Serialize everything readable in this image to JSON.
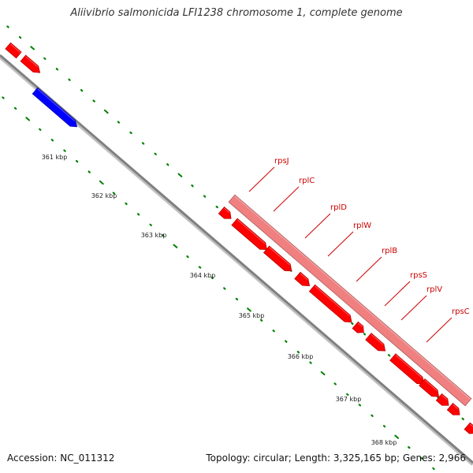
{
  "title": "Aliivibrio salmonicida LFI1238 chromosome 1, complete genome",
  "footer": {
    "accession": "Accession: NC_011312",
    "summary": "Topology: circular; Length: 3,325,165 bp; Genes: 2,966"
  },
  "colors": {
    "forward_gene": "#ff0000",
    "reverse_gene": "#0000ff",
    "operon": "#f08080",
    "backbone": "#808080",
    "tick": "#008000",
    "label": "#cc0000"
  },
  "axis": {
    "ticks": [
      {
        "label": "361 kbp"
      },
      {
        "label": "362 kbp"
      },
      {
        "label": "363 kbp"
      },
      {
        "label": "364 kbp"
      },
      {
        "label": "365 kbp"
      },
      {
        "label": "366 kbp"
      },
      {
        "label": "367 kbp"
      },
      {
        "label": "368 kbp"
      }
    ]
  },
  "genes": [
    {
      "name": "rpsJ"
    },
    {
      "name": "rplC"
    },
    {
      "name": "rplD"
    },
    {
      "name": "rplW"
    },
    {
      "name": "rplB"
    },
    {
      "name": "rpsS"
    },
    {
      "name": "rplV"
    },
    {
      "name": "rpsC"
    }
  ]
}
